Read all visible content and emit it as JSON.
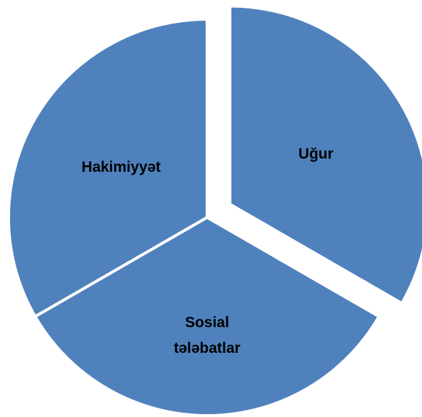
{
  "chart_data": {
    "type": "pie",
    "categories": [
      "Uğur",
      "Sosial tələbatlar",
      "Hakimiyyət"
    ],
    "values": [
      33.3,
      33.3,
      33.3
    ],
    "color": "#4f81bd",
    "explode": [
      true,
      false,
      false
    ]
  }
}
